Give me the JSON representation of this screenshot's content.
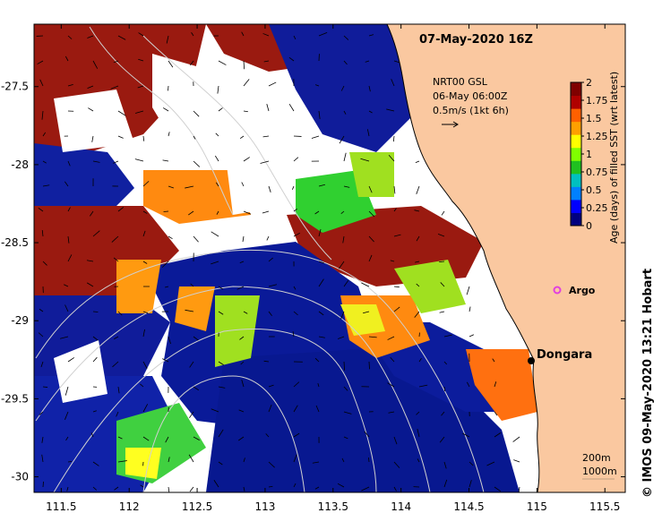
{
  "title": "07-May-2020 16Z",
  "current_info": {
    "line1": "NRT00 GSL",
    "line2": "06-May 06:00Z",
    "line3": "0.5m/s (1kt 6h)"
  },
  "colorbar": {
    "label": "Age (days) of filled SST (wrt latest)",
    "ticks": [
      "2",
      "1.75",
      "1.5",
      "1.25",
      "1",
      "0.75",
      "0.5",
      "0.25",
      "0"
    ],
    "colors": [
      "#000080",
      "#0000ff",
      "#0080ff",
      "#00c0c0",
      "#20c020",
      "#80ff00",
      "#ffff00",
      "#ffa000",
      "#ff6000",
      "#b00000",
      "#800000"
    ]
  },
  "axes": {
    "x_ticks": [
      "111.5",
      "112",
      "112.5",
      "113",
      "113.5",
      "114",
      "114.5",
      "115",
      "115.5"
    ],
    "y_ticks": [
      "-27.5",
      "-28",
      "-28.5",
      "-29",
      "-29.5",
      "-30"
    ],
    "xlim": [
      111.3,
      115.65
    ],
    "ylim": [
      -30.1,
      -27.1
    ]
  },
  "places": {
    "dongara": {
      "label": "Dongara",
      "lon": 114.93,
      "lat": -29.25
    },
    "argo": {
      "label": "Argo",
      "lon": 115.12,
      "lat": -28.84
    }
  },
  "contour_legend": {
    "line1": "200m",
    "line2": "1000m"
  },
  "credit": "© IMOS 09-May-2020 13:21 Hobart",
  "colors": {
    "land": "#fac8a0",
    "argo_marker": "#e040e0",
    "contour": "#d0d0d0"
  }
}
